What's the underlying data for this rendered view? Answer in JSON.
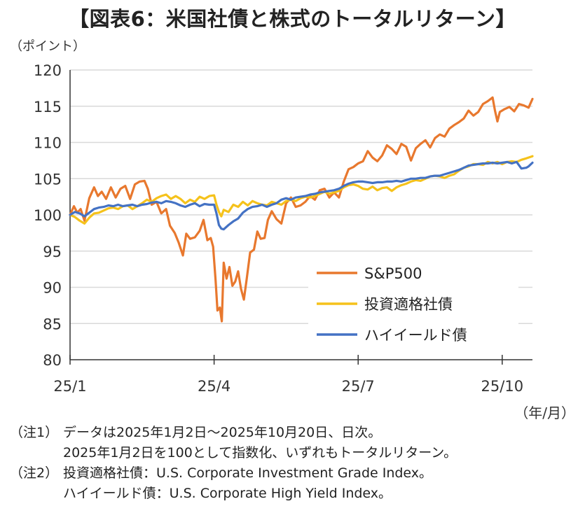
{
  "title": "【図表6：米国社債と株式のトータルリターン】",
  "unit_label": "（ポイント）",
  "x_unit_label": "（年/月）",
  "notes": [
    {
      "tag": "（注1）",
      "lines": [
        "データは2025年1月2日～2025年10月20日、日次。",
        "2025年1月2日を100として指数化、いずれもトータルリターン。"
      ]
    },
    {
      "tag": "（注2）",
      "lines": [
        "投資適格社債：U.S. Corporate Investment Grade Index。",
        "ハイイールド債：U.S. Corporate High Yield Index。"
      ]
    }
  ],
  "chart_data": {
    "type": "line",
    "title": "",
    "xlabel": "",
    "ylabel": "",
    "ylim": [
      80,
      120
    ],
    "yticks": [
      80,
      85,
      90,
      95,
      100,
      105,
      110,
      115,
      120
    ],
    "xticks": [
      {
        "x": 0,
        "label": "25/1"
      },
      {
        "x": 3,
        "label": "25/4"
      },
      {
        "x": 6,
        "label": "25/7"
      },
      {
        "x": 9,
        "label": "25/10"
      }
    ],
    "xlim": [
      0,
      9.63
    ],
    "grid": "horizontal",
    "legend_position": "lower-right inside",
    "series": [
      {
        "name": "S&P500",
        "color": "#E8782E",
        "points": [
          [
            0,
            100
          ],
          [
            0.08,
            101.2
          ],
          [
            0.15,
            100.3
          ],
          [
            0.22,
            100.8
          ],
          [
            0.3,
            99.2
          ],
          [
            0.4,
            102.3
          ],
          [
            0.5,
            103.8
          ],
          [
            0.58,
            102.6
          ],
          [
            0.66,
            103.2
          ],
          [
            0.75,
            102.2
          ],
          [
            0.85,
            103.8
          ],
          [
            0.95,
            102.4
          ],
          [
            1.05,
            103.6
          ],
          [
            1.15,
            104
          ],
          [
            1.25,
            102.2
          ],
          [
            1.35,
            104.2
          ],
          [
            1.45,
            104.6
          ],
          [
            1.55,
            104.7
          ],
          [
            1.62,
            103.6
          ],
          [
            1.7,
            101.4
          ],
          [
            1.8,
            101.8
          ],
          [
            1.9,
            100.2
          ],
          [
            2.0,
            100.8
          ],
          [
            2.08,
            98.5
          ],
          [
            2.18,
            97.5
          ],
          [
            2.26,
            96.2
          ],
          [
            2.35,
            94.4
          ],
          [
            2.42,
            97.4
          ],
          [
            2.5,
            96.7
          ],
          [
            2.6,
            96.9
          ],
          [
            2.7,
            97.8
          ],
          [
            2.78,
            99.3
          ],
          [
            2.86,
            96.5
          ],
          [
            2.93,
            96.8
          ],
          [
            2.98,
            95.6
          ],
          [
            3.03,
            91
          ],
          [
            3.07,
            86.8
          ],
          [
            3.12,
            87.2
          ],
          [
            3.16,
            85.3
          ],
          [
            3.2,
            93.4
          ],
          [
            3.26,
            91.2
          ],
          [
            3.32,
            92.8
          ],
          [
            3.38,
            90.2
          ],
          [
            3.44,
            90.8
          ],
          [
            3.5,
            92.2
          ],
          [
            3.56,
            89.8
          ],
          [
            3.62,
            88.3
          ],
          [
            3.68,
            91.2
          ],
          [
            3.75,
            94.8
          ],
          [
            3.83,
            95.2
          ],
          [
            3.9,
            97.7
          ],
          [
            3.97,
            96.7
          ],
          [
            4.05,
            96.8
          ],
          [
            4.12,
            99.3
          ],
          [
            4.2,
            100.5
          ],
          [
            4.3,
            99.4
          ],
          [
            4.4,
            98.8
          ],
          [
            4.5,
            101.6
          ],
          [
            4.6,
            102.4
          ],
          [
            4.7,
            101.1
          ],
          [
            4.8,
            101.3
          ],
          [
            4.9,
            101.8
          ],
          [
            5.0,
            102.6
          ],
          [
            5.1,
            102.1
          ],
          [
            5.2,
            103.4
          ],
          [
            5.3,
            103.6
          ],
          [
            5.4,
            102.4
          ],
          [
            5.5,
            103.1
          ],
          [
            5.6,
            102.4
          ],
          [
            5.7,
            104.6
          ],
          [
            5.8,
            106.3
          ],
          [
            5.9,
            106.6
          ],
          [
            6.0,
            107.1
          ],
          [
            6.1,
            107.4
          ],
          [
            6.2,
            108.8
          ],
          [
            6.3,
            107.9
          ],
          [
            6.4,
            107.4
          ],
          [
            6.5,
            108.2
          ],
          [
            6.6,
            109.6
          ],
          [
            6.7,
            109.1
          ],
          [
            6.8,
            108.4
          ],
          [
            6.9,
            109.8
          ],
          [
            7.0,
            109.4
          ],
          [
            7.1,
            107.5
          ],
          [
            7.2,
            109.2
          ],
          [
            7.3,
            109.8
          ],
          [
            7.4,
            110.3
          ],
          [
            7.5,
            109.3
          ],
          [
            7.6,
            110.6
          ],
          [
            7.7,
            111.1
          ],
          [
            7.8,
            110.8
          ],
          [
            7.9,
            111.9
          ],
          [
            8.0,
            112.4
          ],
          [
            8.1,
            112.8
          ],
          [
            8.2,
            113.3
          ],
          [
            8.3,
            114.4
          ],
          [
            8.4,
            113.7
          ],
          [
            8.5,
            114.2
          ],
          [
            8.6,
            115.3
          ],
          [
            8.7,
            115.7
          ],
          [
            8.8,
            116.2
          ],
          [
            8.85,
            114.4
          ],
          [
            8.9,
            112.9
          ],
          [
            8.95,
            114.2
          ],
          [
            9.05,
            114.6
          ],
          [
            9.15,
            114.9
          ],
          [
            9.25,
            114.3
          ],
          [
            9.35,
            115.3
          ],
          [
            9.45,
            115.1
          ],
          [
            9.55,
            114.8
          ],
          [
            9.63,
            116
          ]
        ]
      },
      {
        "name": "投資適格社債",
        "color": "#F5C21B",
        "points": [
          [
            0,
            100
          ],
          [
            0.1,
            99.7
          ],
          [
            0.2,
            99.2
          ],
          [
            0.3,
            98.8
          ],
          [
            0.4,
            99.6
          ],
          [
            0.5,
            100.2
          ],
          [
            0.6,
            100.3
          ],
          [
            0.7,
            100.6
          ],
          [
            0.8,
            100.9
          ],
          [
            0.9,
            101
          ],
          [
            1.0,
            100.8
          ],
          [
            1.1,
            101.2
          ],
          [
            1.2,
            101.3
          ],
          [
            1.3,
            100.8
          ],
          [
            1.4,
            101.2
          ],
          [
            1.5,
            101.6
          ],
          [
            1.6,
            102.1
          ],
          [
            1.7,
            101.8
          ],
          [
            1.8,
            102.3
          ],
          [
            1.9,
            102.6
          ],
          [
            2.0,
            102.8
          ],
          [
            2.1,
            102.2
          ],
          [
            2.2,
            102.6
          ],
          [
            2.3,
            102.2
          ],
          [
            2.4,
            101.6
          ],
          [
            2.5,
            102.1
          ],
          [
            2.6,
            101.8
          ],
          [
            2.7,
            102.5
          ],
          [
            2.8,
            102.2
          ],
          [
            2.9,
            102.6
          ],
          [
            3.0,
            102.7
          ],
          [
            3.05,
            101.4
          ],
          [
            3.1,
            100.4
          ],
          [
            3.15,
            99.8
          ],
          [
            3.2,
            100.7
          ],
          [
            3.3,
            100.4
          ],
          [
            3.4,
            101.4
          ],
          [
            3.5,
            101.1
          ],
          [
            3.6,
            101.8
          ],
          [
            3.7,
            101.3
          ],
          [
            3.8,
            101.9
          ],
          [
            3.9,
            101.6
          ],
          [
            4.0,
            101.4
          ],
          [
            4.1,
            101.3
          ],
          [
            4.2,
            101.8
          ],
          [
            4.3,
            101.6
          ],
          [
            4.4,
            101.4
          ],
          [
            4.5,
            101.9
          ],
          [
            4.6,
            102.1
          ],
          [
            4.7,
            101.9
          ],
          [
            4.8,
            102.3
          ],
          [
            4.9,
            102.5
          ],
          [
            5.0,
            102.4
          ],
          [
            5.1,
            102.6
          ],
          [
            5.2,
            102.9
          ],
          [
            5.3,
            103.2
          ],
          [
            5.4,
            102.9
          ],
          [
            5.5,
            103.1
          ],
          [
            5.6,
            103.3
          ],
          [
            5.7,
            103.8
          ],
          [
            5.8,
            104.1
          ],
          [
            5.9,
            104.2
          ],
          [
            6.0,
            104
          ],
          [
            6.1,
            103.6
          ],
          [
            6.2,
            103.5
          ],
          [
            6.3,
            103.9
          ],
          [
            6.4,
            103.4
          ],
          [
            6.5,
            103.7
          ],
          [
            6.6,
            103.8
          ],
          [
            6.7,
            103.3
          ],
          [
            6.8,
            103.8
          ],
          [
            6.9,
            104.1
          ],
          [
            7.0,
            104.3
          ],
          [
            7.1,
            104.6
          ],
          [
            7.2,
            104.8
          ],
          [
            7.3,
            104.7
          ],
          [
            7.4,
            105
          ],
          [
            7.5,
            105.3
          ],
          [
            7.6,
            105.4
          ],
          [
            7.7,
            105.3
          ],
          [
            7.8,
            105.1
          ],
          [
            7.9,
            105.4
          ],
          [
            8.0,
            105.6
          ],
          [
            8.1,
            106.1
          ],
          [
            8.2,
            106.5
          ],
          [
            8.3,
            106.7
          ],
          [
            8.4,
            107
          ],
          [
            8.5,
            107
          ],
          [
            8.6,
            106.9
          ],
          [
            8.7,
            107.3
          ],
          [
            8.8,
            107.1
          ],
          [
            8.9,
            107.3
          ],
          [
            9.0,
            107
          ],
          [
            9.1,
            107.3
          ],
          [
            9.2,
            107.4
          ],
          [
            9.3,
            107.3
          ],
          [
            9.4,
            107.6
          ],
          [
            9.5,
            107.8
          ],
          [
            9.63,
            108.1
          ]
        ]
      },
      {
        "name": "ハイイールド債",
        "color": "#4472C4",
        "points": [
          [
            0,
            100
          ],
          [
            0.1,
            100.4
          ],
          [
            0.2,
            100.2
          ],
          [
            0.3,
            99.8
          ],
          [
            0.4,
            100.3
          ],
          [
            0.5,
            100.8
          ],
          [
            0.6,
            101
          ],
          [
            0.7,
            101.1
          ],
          [
            0.8,
            101.3
          ],
          [
            0.9,
            101.2
          ],
          [
            1.0,
            101.4
          ],
          [
            1.1,
            101.2
          ],
          [
            1.2,
            101.3
          ],
          [
            1.3,
            101.4
          ],
          [
            1.4,
            101.2
          ],
          [
            1.5,
            101.4
          ],
          [
            1.6,
            101.5
          ],
          [
            1.7,
            101.7
          ],
          [
            1.8,
            101.8
          ],
          [
            1.9,
            101.6
          ],
          [
            2.0,
            101.9
          ],
          [
            2.1,
            101.8
          ],
          [
            2.2,
            101.6
          ],
          [
            2.3,
            101.3
          ],
          [
            2.4,
            101.1
          ],
          [
            2.5,
            101.4
          ],
          [
            2.6,
            101.6
          ],
          [
            2.7,
            101.2
          ],
          [
            2.8,
            101.5
          ],
          [
            2.9,
            101.4
          ],
          [
            3.0,
            101.4
          ],
          [
            3.05,
            100.2
          ],
          [
            3.1,
            98.6
          ],
          [
            3.15,
            98.1
          ],
          [
            3.2,
            98
          ],
          [
            3.3,
            98.6
          ],
          [
            3.4,
            99.1
          ],
          [
            3.5,
            99.5
          ],
          [
            3.6,
            100.3
          ],
          [
            3.7,
            100.8
          ],
          [
            3.8,
            101.1
          ],
          [
            3.9,
            101.2
          ],
          [
            4.0,
            101.4
          ],
          [
            4.1,
            101.1
          ],
          [
            4.2,
            101.4
          ],
          [
            4.3,
            101.6
          ],
          [
            4.4,
            102.1
          ],
          [
            4.5,
            102.3
          ],
          [
            4.6,
            102.1
          ],
          [
            4.7,
            102.4
          ],
          [
            4.8,
            102.5
          ],
          [
            4.9,
            102.6
          ],
          [
            5.0,
            102.8
          ],
          [
            5.1,
            102.9
          ],
          [
            5.2,
            103.1
          ],
          [
            5.3,
            103.2
          ],
          [
            5.4,
            103.3
          ],
          [
            5.5,
            103.4
          ],
          [
            5.6,
            103.6
          ],
          [
            5.7,
            104
          ],
          [
            5.8,
            104.3
          ],
          [
            5.9,
            104.5
          ],
          [
            6.0,
            104.6
          ],
          [
            6.1,
            104.6
          ],
          [
            6.2,
            104.5
          ],
          [
            6.3,
            104.4
          ],
          [
            6.4,
            104.5
          ],
          [
            6.5,
            104.5
          ],
          [
            6.6,
            104.6
          ],
          [
            6.7,
            104.6
          ],
          [
            6.8,
            104.7
          ],
          [
            6.9,
            104.6
          ],
          [
            7.0,
            104.8
          ],
          [
            7.1,
            105
          ],
          [
            7.2,
            105
          ],
          [
            7.3,
            105.1
          ],
          [
            7.4,
            105.1
          ],
          [
            7.5,
            105.3
          ],
          [
            7.6,
            105.4
          ],
          [
            7.7,
            105.4
          ],
          [
            7.8,
            105.6
          ],
          [
            7.9,
            105.8
          ],
          [
            8.0,
            106
          ],
          [
            8.1,
            106.2
          ],
          [
            8.2,
            106.5
          ],
          [
            8.3,
            106.8
          ],
          [
            8.4,
            106.9
          ],
          [
            8.5,
            107
          ],
          [
            8.6,
            107.1
          ],
          [
            8.7,
            107.1
          ],
          [
            8.8,
            107.2
          ],
          [
            8.9,
            107.1
          ],
          [
            9.0,
            107.2
          ],
          [
            9.1,
            107.3
          ],
          [
            9.2,
            107.1
          ],
          [
            9.3,
            107.3
          ],
          [
            9.4,
            106.4
          ],
          [
            9.5,
            106.5
          ],
          [
            9.55,
            106.7
          ],
          [
            9.63,
            107.2
          ]
        ]
      }
    ]
  }
}
